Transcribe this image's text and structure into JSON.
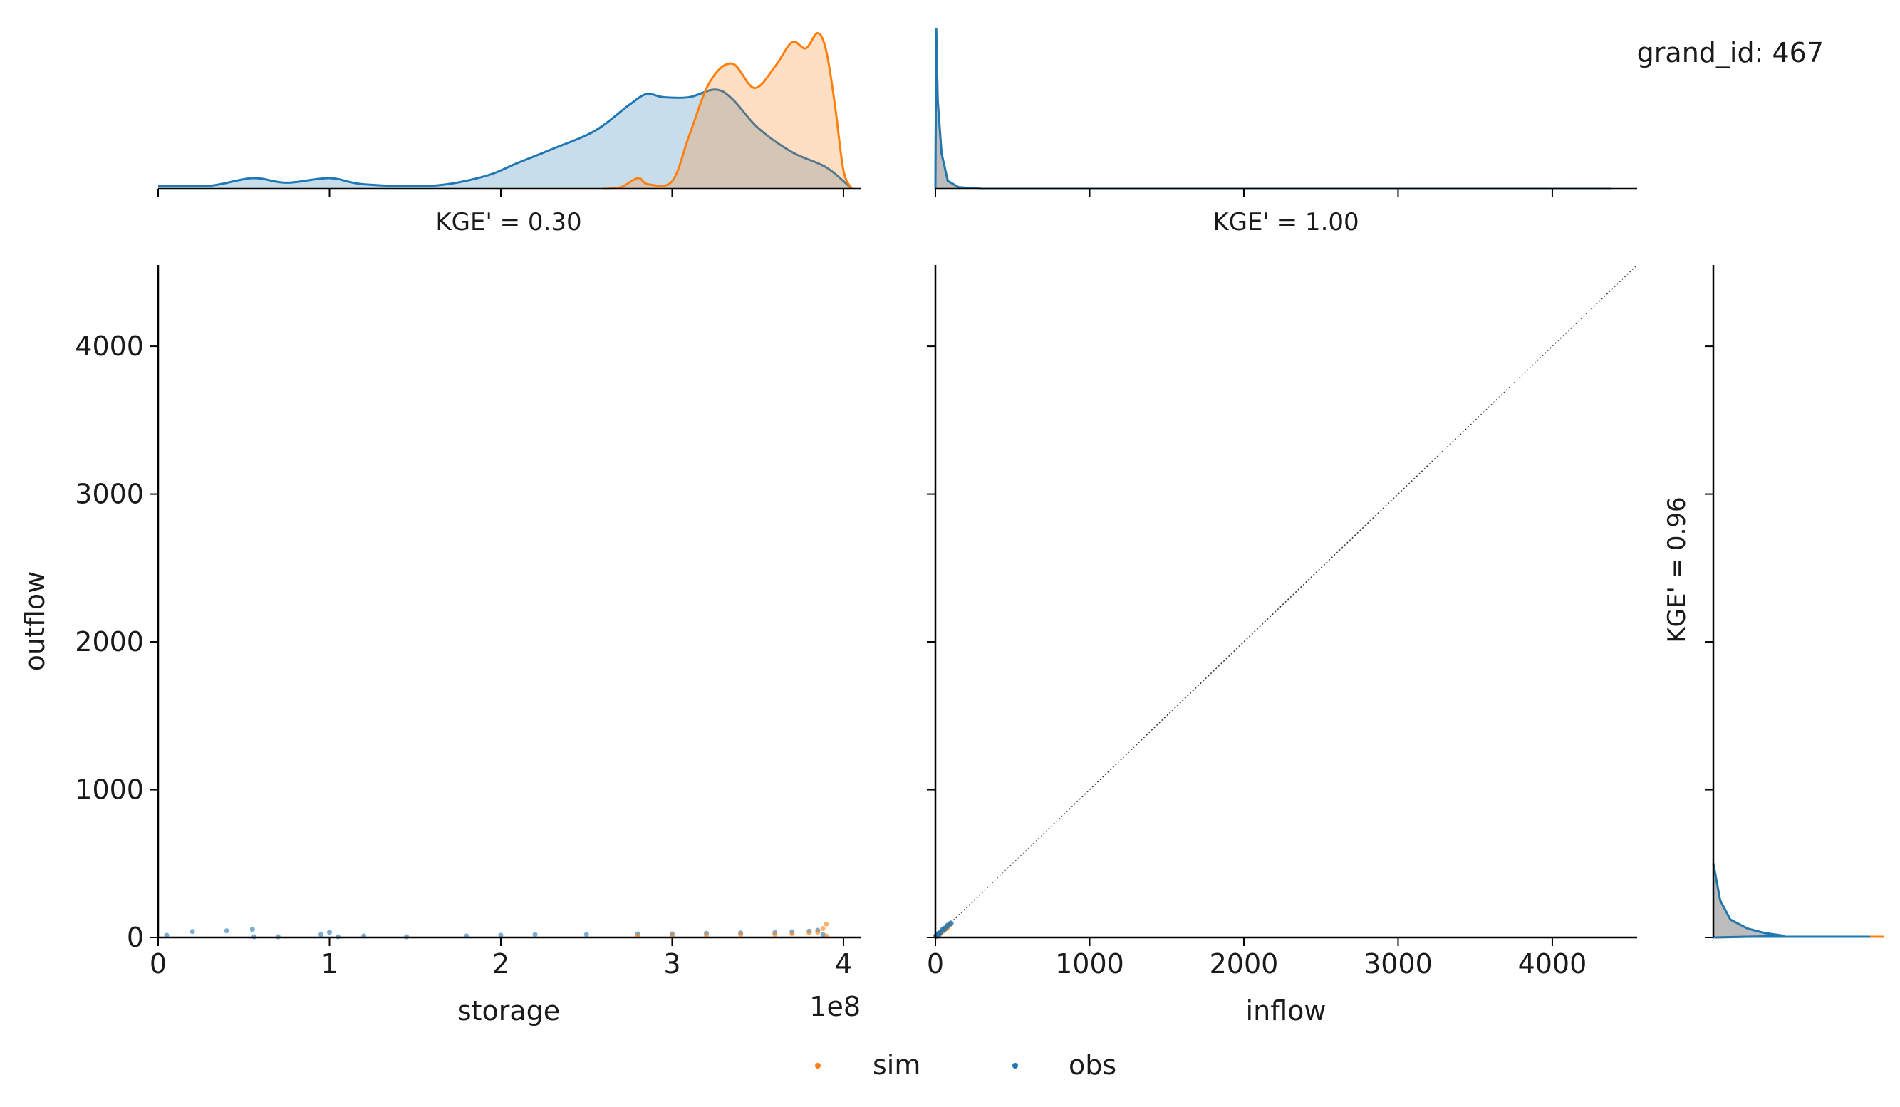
{
  "annotation": "grand_id: 467",
  "colors": {
    "sim": "#ff7f0e",
    "obs": "#1f77b4",
    "overlap": "#c0c0c0",
    "axis": "#000000"
  },
  "legend": {
    "placement": "bottom-center",
    "items": [
      {
        "label": "sim",
        "color": "#ff7f0e"
      },
      {
        "label": "obs",
        "color": "#1f77b4"
      }
    ]
  },
  "chart_data": [
    {
      "type": "area",
      "panel": "storage-distribution",
      "title": "KGE' = 0.30",
      "xlim": [
        0,
        4.1
      ],
      "x_ticks": [
        0,
        1,
        2,
        3,
        4
      ],
      "series": [
        {
          "name": "obs",
          "x": [
            0,
            0.3,
            0.55,
            0.75,
            1.0,
            1.2,
            1.6,
            1.9,
            2.1,
            2.3,
            2.55,
            2.75,
            2.85,
            2.95,
            3.1,
            3.25,
            3.35,
            3.5,
            3.7,
            3.9,
            4.05
          ],
          "values": [
            0.02,
            0.02,
            0.07,
            0.04,
            0.07,
            0.03,
            0.02,
            0.08,
            0.17,
            0.26,
            0.38,
            0.55,
            0.62,
            0.6,
            0.6,
            0.65,
            0.59,
            0.4,
            0.24,
            0.14,
            0.0
          ]
        },
        {
          "name": "sim",
          "x": [
            2.6,
            2.7,
            2.8,
            2.86,
            3.0,
            3.1,
            3.22,
            3.35,
            3.48,
            3.6,
            3.7,
            3.78,
            3.85,
            3.9,
            3.95,
            4.0,
            4.05
          ],
          "values": [
            0.0,
            0.01,
            0.07,
            0.03,
            0.05,
            0.35,
            0.7,
            0.82,
            0.66,
            0.8,
            0.96,
            0.92,
            1.02,
            0.9,
            0.55,
            0.12,
            0.0
          ]
        }
      ]
    },
    {
      "type": "area",
      "panel": "inflow-distribution",
      "title": "KGE' = 1.00",
      "xlim": [
        0,
        4550
      ],
      "x_ticks": [
        0,
        1000,
        2000,
        3000,
        4000
      ],
      "series": [
        {
          "name": "sim",
          "x": [
            0,
            5,
            15,
            40,
            80,
            150,
            300,
            4380
          ],
          "values": [
            0.0,
            1.0,
            0.55,
            0.22,
            0.05,
            0.01,
            0.0,
            0.0
          ]
        },
        {
          "name": "obs",
          "x": [
            0,
            5,
            15,
            40,
            80,
            150,
            300,
            4380
          ],
          "values": [
            0.0,
            1.0,
            0.55,
            0.22,
            0.05,
            0.01,
            0.0,
            0.0
          ]
        }
      ]
    },
    {
      "type": "scatter",
      "panel": "storage-vs-outflow",
      "xlabel": "storage",
      "x_offset_text": "1e8",
      "ylabel": "outflow",
      "xlim": [
        0,
        4.1
      ],
      "ylim": [
        0,
        4550
      ],
      "x_ticks": [
        0,
        1,
        2,
        3,
        4
      ],
      "y_ticks": [
        0,
        1000,
        2000,
        3000,
        4000
      ],
      "series": [
        {
          "name": "obs",
          "x": [
            0.05,
            0.2,
            0.4,
            0.55,
            0.56,
            0.7,
            0.95,
            1.0,
            1.05,
            1.2,
            1.45,
            1.8,
            2.0,
            2.2,
            2.5,
            2.8,
            3.0,
            3.2,
            3.4,
            3.6,
            3.7,
            3.8,
            3.85,
            3.88
          ],
          "values": [
            15,
            40,
            45,
            55,
            5,
            5,
            20,
            35,
            5,
            10,
            5,
            10,
            15,
            20,
            20,
            25,
            25,
            28,
            30,
            33,
            38,
            42,
            48,
            20
          ]
        },
        {
          "name": "sim",
          "x": [
            2.8,
            3.0,
            3.2,
            3.4,
            3.6,
            3.7,
            3.8,
            3.85,
            3.88,
            3.9,
            3.9
          ],
          "values": [
            10,
            12,
            15,
            18,
            20,
            25,
            30,
            35,
            60,
            90,
            10
          ]
        }
      ]
    },
    {
      "type": "scatter",
      "panel": "inflow-vs-outflow",
      "xlabel": "inflow",
      "xlim": [
        0,
        4550
      ],
      "ylim": [
        0,
        4550
      ],
      "x_ticks": [
        0,
        1000,
        2000,
        3000,
        4000
      ],
      "y_ticks": [
        0,
        1000,
        2000,
        3000,
        4000
      ],
      "reference_line": "1:1",
      "series": [
        {
          "name": "sim",
          "x": [
            5,
            15,
            25,
            35,
            50,
            60,
            75,
            90
          ],
          "values": [
            8,
            18,
            22,
            35,
            45,
            55,
            65,
            85
          ]
        },
        {
          "name": "obs",
          "x": [
            5,
            10,
            20,
            30,
            45,
            60,
            80,
            100
          ],
          "values": [
            10,
            15,
            25,
            30,
            50,
            60,
            80,
            95
          ]
        }
      ]
    },
    {
      "type": "area",
      "panel": "outflow-distribution",
      "title": "KGE' = 0.96",
      "ylim": [
        0,
        4550
      ],
      "y_ticks": [
        0,
        1000,
        2000,
        3000,
        4000
      ],
      "series": [
        {
          "name": "obs",
          "y": [
            0,
            10,
            30,
            60,
            120,
            250,
            500
          ],
          "values": [
            0.0,
            0.42,
            0.3,
            0.2,
            0.1,
            0.04,
            0.0
          ]
        },
        {
          "name": "sim",
          "y": [
            0,
            10,
            30,
            60,
            120,
            250,
            500
          ],
          "values": [
            0.0,
            0.42,
            0.3,
            0.2,
            0.1,
            0.04,
            0.0
          ]
        }
      ]
    }
  ]
}
